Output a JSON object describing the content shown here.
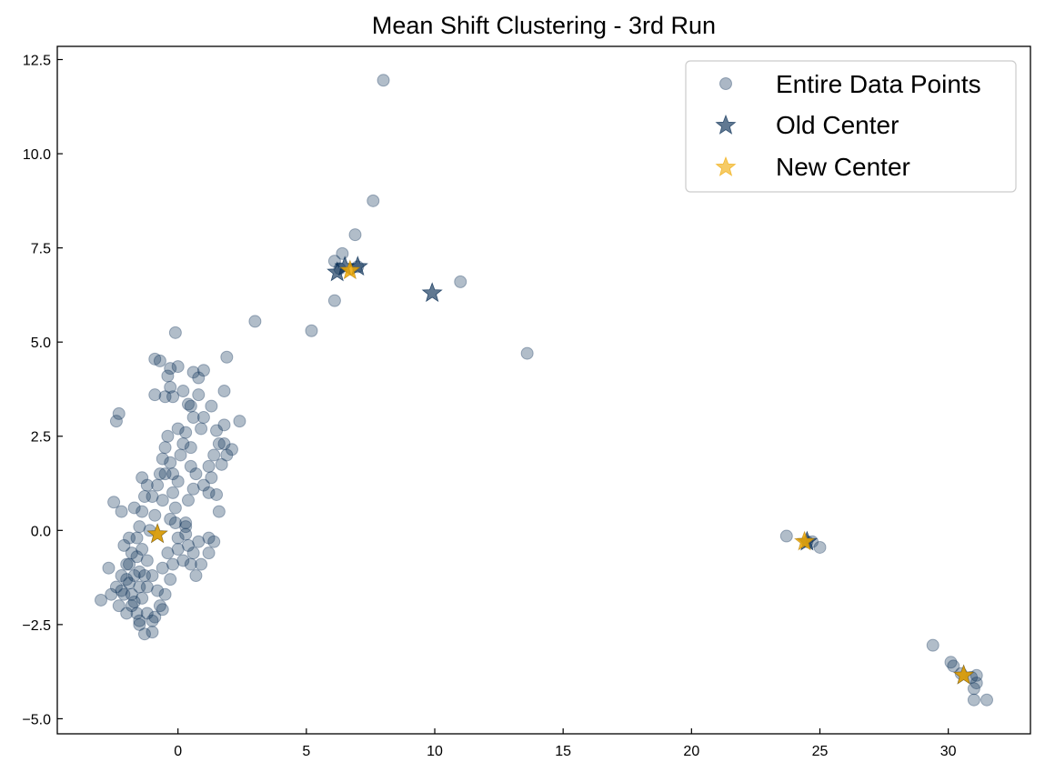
{
  "chart_data": {
    "type": "scatter",
    "title": "Mean Shift Clustering - 3rd Run",
    "xlabel": "",
    "ylabel": "",
    "xlim": [
      -4.7,
      33.2
    ],
    "ylim": [
      -5.4,
      12.85
    ],
    "x_ticks": [
      0,
      5,
      10,
      15,
      20,
      25,
      30
    ],
    "y_ticks": [
      -5.0,
      -2.5,
      0.0,
      2.5,
      5.0,
      7.5,
      10.0,
      12.5
    ],
    "x_tick_labels": [
      "0",
      "5",
      "10",
      "15",
      "20",
      "25",
      "30"
    ],
    "y_tick_labels": [
      "−5.0",
      "−2.5",
      "0.0",
      "2.5",
      "5.0",
      "7.5",
      "10.0",
      "12.5"
    ],
    "grid": false,
    "legend_position": "top-right",
    "colors": {
      "points": "#0d3158",
      "old_center": "#0d3158",
      "new_center": "#f0a800"
    },
    "series": [
      {
        "name": "Entire Data Points",
        "marker": "circle",
        "points": [
          [
            8.0,
            11.95
          ],
          [
            7.6,
            8.75
          ],
          [
            6.9,
            7.85
          ],
          [
            6.4,
            7.35
          ],
          [
            6.1,
            7.15
          ],
          [
            6.3,
            6.95
          ],
          [
            6.1,
            6.1
          ],
          [
            7.0,
            7.0
          ],
          [
            11.0,
            6.6
          ],
          [
            13.6,
            4.7
          ],
          [
            5.2,
            5.3
          ],
          [
            3.0,
            5.55
          ],
          [
            -0.1,
            5.25
          ],
          [
            1.9,
            4.6
          ],
          [
            1.8,
            3.7
          ],
          [
            2.4,
            2.9
          ],
          [
            -2.4,
            2.9
          ],
          [
            -2.3,
            3.1
          ],
          [
            -2.5,
            0.75
          ],
          [
            -3.0,
            -1.85
          ],
          [
            -2.7,
            -1.0
          ],
          [
            -2.2,
            0.5
          ],
          [
            -1.9,
            -0.2
          ],
          [
            -1.3,
            -2.75
          ],
          [
            -1.0,
            -2.7
          ],
          [
            -1.5,
            -2.5
          ],
          [
            -0.9,
            4.55
          ],
          [
            -0.7,
            4.5
          ],
          [
            -0.4,
            4.1
          ],
          [
            -0.3,
            4.3
          ],
          [
            0.0,
            4.35
          ],
          [
            -0.5,
            3.55
          ],
          [
            -0.2,
            3.55
          ],
          [
            -0.9,
            3.6
          ],
          [
            -0.3,
            3.8
          ],
          [
            0.6,
            4.2
          ],
          [
            0.8,
            4.05
          ],
          [
            1.0,
            4.25
          ],
          [
            0.2,
            3.7
          ],
          [
            0.5,
            3.3
          ],
          [
            0.8,
            3.6
          ],
          [
            1.3,
            3.3
          ],
          [
            0.4,
            3.35
          ],
          [
            0.0,
            2.7
          ],
          [
            0.6,
            3.0
          ],
          [
            0.9,
            2.7
          ],
          [
            1.0,
            3.0
          ],
          [
            1.5,
            2.65
          ],
          [
            1.8,
            2.8
          ],
          [
            1.8,
            2.3
          ],
          [
            2.1,
            2.15
          ],
          [
            1.9,
            2.0
          ],
          [
            1.7,
            1.75
          ],
          [
            1.4,
            2.0
          ],
          [
            1.6,
            2.3
          ],
          [
            1.2,
            1.7
          ],
          [
            1.3,
            1.4
          ],
          [
            1.0,
            1.2
          ],
          [
            1.2,
            1.0
          ],
          [
            1.5,
            0.95
          ],
          [
            1.6,
            0.5
          ],
          [
            0.5,
            1.7
          ],
          [
            0.7,
            1.5
          ],
          [
            0.6,
            1.1
          ],
          [
            0.4,
            0.8
          ],
          [
            0.3,
            0.2
          ],
          [
            0.3,
            -0.1
          ],
          [
            0.1,
            2.0
          ],
          [
            0.2,
            2.3
          ],
          [
            0.3,
            2.6
          ],
          [
            0.5,
            2.2
          ],
          [
            -0.4,
            2.5
          ],
          [
            -0.5,
            2.2
          ],
          [
            -0.6,
            1.9
          ],
          [
            -0.5,
            1.5
          ],
          [
            -0.3,
            1.8
          ],
          [
            -0.2,
            1.5
          ],
          [
            0.0,
            1.3
          ],
          [
            -0.2,
            1.0
          ],
          [
            -0.1,
            0.6
          ],
          [
            -0.3,
            0.3
          ],
          [
            -0.6,
            0.8
          ],
          [
            -0.8,
            1.2
          ],
          [
            -0.7,
            1.5
          ],
          [
            -0.9,
            0.4
          ],
          [
            -1.2,
            1.2
          ],
          [
            -1.3,
            0.9
          ],
          [
            -1.4,
            0.5
          ],
          [
            -1.1,
            0.0
          ],
          [
            -1.5,
            0.1
          ],
          [
            -1.6,
            -0.2
          ],
          [
            -1.4,
            -0.5
          ],
          [
            -1.2,
            -0.8
          ],
          [
            -1.5,
            -1.1
          ],
          [
            -1.8,
            -0.6
          ],
          [
            -2.0,
            -0.9
          ],
          [
            -2.2,
            -1.2
          ],
          [
            -2.4,
            -1.5
          ],
          [
            -2.1,
            -1.7
          ],
          [
            -1.9,
            -1.4
          ],
          [
            -1.7,
            -1.9
          ],
          [
            -2.3,
            -2.0
          ],
          [
            -2.6,
            -1.7
          ],
          [
            -1.6,
            -2.2
          ],
          [
            -1.8,
            -2.0
          ],
          [
            -2.0,
            -2.2
          ],
          [
            -1.4,
            -1.8
          ],
          [
            -1.2,
            -1.5
          ],
          [
            -1.0,
            -1.2
          ],
          [
            -0.8,
            -1.6
          ],
          [
            -0.7,
            -2.0
          ],
          [
            -0.9,
            -2.3
          ],
          [
            -0.6,
            -2.1
          ],
          [
            -0.5,
            -1.7
          ],
          [
            -0.3,
            -1.3
          ],
          [
            -0.6,
            -1.0
          ],
          [
            -0.2,
            -0.9
          ],
          [
            0.0,
            -0.5
          ],
          [
            0.2,
            -0.8
          ],
          [
            0.4,
            -0.4
          ],
          [
            0.5,
            -0.9
          ],
          [
            0.7,
            -1.2
          ],
          [
            0.6,
            -0.6
          ],
          [
            0.8,
            -0.3
          ],
          [
            0.9,
            -0.9
          ],
          [
            1.2,
            -0.2
          ],
          [
            1.4,
            -0.3
          ],
          [
            1.2,
            -0.6
          ],
          [
            -1.7,
            0.6
          ],
          [
            -1.0,
            0.9
          ],
          [
            -1.4,
            1.4
          ],
          [
            -1.9,
            -0.9
          ],
          [
            -2.1,
            -0.4
          ],
          [
            -1.6,
            -0.7
          ],
          [
            -1.3,
            -1.2
          ],
          [
            -1.7,
            -1.2
          ],
          [
            -2.0,
            -1.3
          ],
          [
            -1.5,
            -1.5
          ],
          [
            -1.8,
            -1.7
          ],
          [
            -2.2,
            -1.6
          ],
          [
            -1.2,
            -2.2
          ],
          [
            -1.0,
            -2.4
          ],
          [
            -1.5,
            -2.4
          ],
          [
            -0.4,
            -0.6
          ],
          [
            0.0,
            -0.2
          ],
          [
            0.3,
            0.1
          ],
          [
            -0.1,
            0.2
          ],
          [
            23.7,
            -0.15
          ],
          [
            24.5,
            -0.3
          ],
          [
            24.7,
            -0.3
          ],
          [
            25.0,
            -0.45
          ],
          [
            29.4,
            -3.05
          ],
          [
            30.1,
            -3.5
          ],
          [
            30.2,
            -3.6
          ],
          [
            30.5,
            -3.8
          ],
          [
            30.9,
            -3.9
          ],
          [
            31.0,
            -4.2
          ],
          [
            31.1,
            -3.85
          ],
          [
            31.1,
            -4.05
          ],
          [
            31.0,
            -4.5
          ],
          [
            31.5,
            -4.5
          ]
        ]
      },
      {
        "name": "Old Center",
        "marker": "star",
        "points": [
          [
            6.2,
            6.85
          ],
          [
            6.5,
            7.0
          ],
          [
            7.0,
            7.0
          ],
          [
            9.9,
            6.3
          ],
          [
            -0.8,
            -0.1
          ],
          [
            24.5,
            -0.3
          ],
          [
            30.6,
            -3.85
          ]
        ]
      },
      {
        "name": "New Center",
        "marker": "star",
        "points": [
          [
            6.7,
            6.9
          ],
          [
            -0.8,
            -0.1
          ],
          [
            24.4,
            -0.3
          ],
          [
            30.6,
            -3.85
          ]
        ]
      }
    ]
  }
}
